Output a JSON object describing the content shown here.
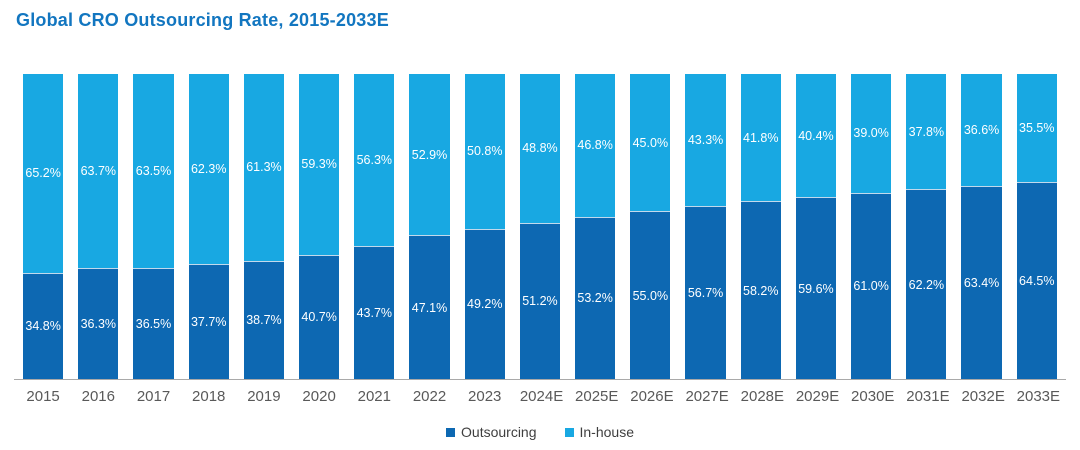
{
  "title": "Global CRO Outsourcing Rate, 2015-2033E",
  "colors": {
    "title": "#1276c0",
    "outsourcing": "#0d68b2",
    "inhouse": "#18a8e2",
    "axis_line": "#a9a9a9",
    "tick_label": "#595959",
    "legend_text": "#3f3f3f",
    "bar_label": "#ffffff"
  },
  "legend": [
    {
      "label": "Outsourcing",
      "color": "#0d68b2"
    },
    {
      "label": "In-house",
      "color": "#18a8e2"
    }
  ],
  "chart_data": {
    "type": "bar",
    "stacked": true,
    "title": "Global CRO Outsourcing Rate, 2015-2033E",
    "categories": [
      "2015",
      "2016",
      "2017",
      "2018",
      "2019",
      "2020",
      "2021",
      "2022",
      "2023",
      "2024E",
      "2025E",
      "2026E",
      "2027E",
      "2028E",
      "2029E",
      "2030E",
      "2031E",
      "2032E",
      "2033E"
    ],
    "series": [
      {
        "name": "Outsourcing",
        "color": "#0d68b2",
        "values": [
          34.8,
          36.3,
          36.5,
          37.7,
          38.7,
          40.7,
          43.7,
          47.1,
          49.2,
          51.2,
          53.2,
          55.0,
          56.7,
          58.2,
          59.6,
          61.0,
          62.2,
          63.4,
          64.5
        ]
      },
      {
        "name": "In-house",
        "color": "#18a8e2",
        "values": [
          65.2,
          63.7,
          63.5,
          62.3,
          61.3,
          59.3,
          56.3,
          52.9,
          50.8,
          48.8,
          46.8,
          45.0,
          43.3,
          41.8,
          40.4,
          39.0,
          37.8,
          36.6,
          35.5
        ]
      }
    ],
    "value_suffix": "%",
    "value_decimals": 1,
    "ylim": [
      0,
      100
    ],
    "grid": false,
    "legend_position": "bottom"
  }
}
